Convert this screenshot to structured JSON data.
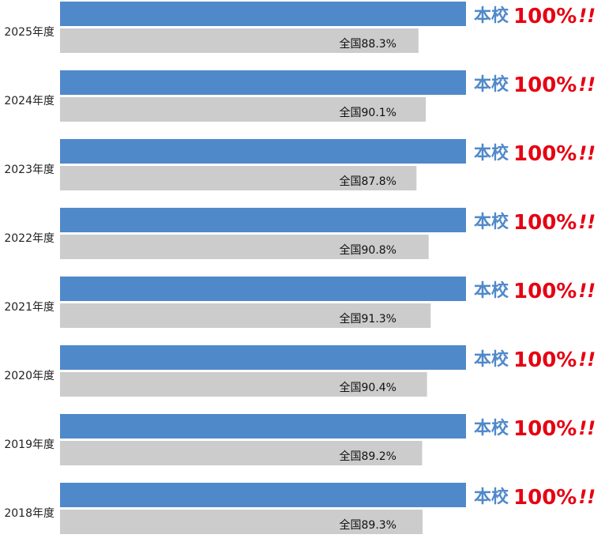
{
  "chart_data": {
    "type": "hbar-compare",
    "categories": [
      "2025年度",
      "2024年度",
      "2023年度",
      "2022年度",
      "2021年度",
      "2020年度",
      "2019年度",
      "2018年度"
    ],
    "xlim": [
      0,
      100
    ],
    "emphasis": "!!",
    "series": [
      {
        "name": "本校",
        "color": "#5089c9",
        "values": [
          100,
          100,
          100,
          100,
          100,
          100,
          100,
          100
        ],
        "value_labels": [
          "100%",
          "100%",
          "100%",
          "100%",
          "100%",
          "100%",
          "100%",
          "100%"
        ]
      },
      {
        "name": "全国",
        "color": "#cccccc",
        "values": [
          88.3,
          90.1,
          87.8,
          90.8,
          91.3,
          90.4,
          89.2,
          89.3
        ],
        "value_labels": [
          "全国88.3%",
          "全国90.1%",
          "全国87.8%",
          "全国90.8%",
          "全国91.3%",
          "全国90.4%",
          "全国89.2%",
          "全国89.3%"
        ]
      }
    ]
  }
}
